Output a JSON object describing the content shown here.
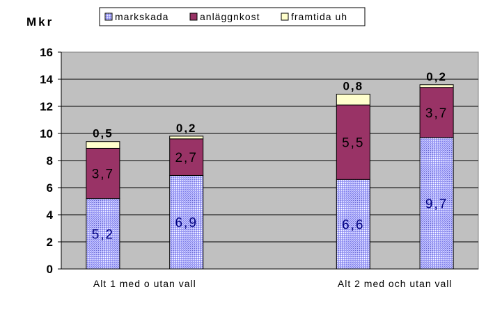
{
  "chart_data": {
    "type": "bar",
    "stacked": true,
    "ylabel": "Mkr",
    "ylim": [
      0,
      16
    ],
    "yticks": [
      0,
      2,
      4,
      6,
      8,
      10,
      12,
      14,
      16
    ],
    "grid": true,
    "legend_position": "top",
    "categories": [
      "Alt 1 med o utan vall",
      "Alt 2 med och utan vall"
    ],
    "bars": [
      {
        "values": [
          5.2,
          3.7,
          0.5
        ],
        "labels": [
          "5,2",
          "3,7",
          "0,5"
        ]
      },
      {
        "values": [
          6.9,
          2.7,
          0.2
        ],
        "labels": [
          "6,9",
          "2,7",
          "0,2"
        ]
      },
      {
        "values": [
          6.6,
          5.5,
          0.8
        ],
        "labels": [
          "6,6",
          "5,5",
          "0,8"
        ]
      },
      {
        "values": [
          9.7,
          3.7,
          0.2
        ],
        "labels": [
          "9,7",
          "3,7",
          "0,2"
        ]
      }
    ],
    "series": [
      {
        "name": "markskada",
        "color": "#9999ff"
      },
      {
        "name": "anläggnkost",
        "color": "#993366"
      },
      {
        "name": "framtida uh",
        "color": "#ffffcc"
      }
    ],
    "plot_background": "#c0c0c0"
  }
}
